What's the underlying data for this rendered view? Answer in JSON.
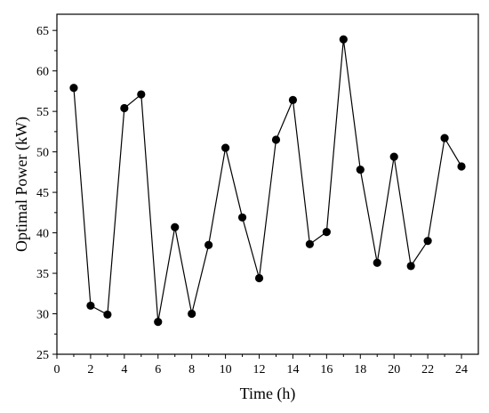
{
  "chart_data": {
    "type": "line",
    "title": "",
    "xlabel": "Time (h)",
    "ylabel": "Optimal Power (kW)",
    "xlim": [
      0,
      25
    ],
    "ylim": [
      25,
      67
    ],
    "xticks": [
      0,
      2,
      4,
      6,
      8,
      10,
      12,
      14,
      16,
      18,
      20,
      22,
      24
    ],
    "yticks": [
      25,
      30,
      35,
      40,
      45,
      50,
      55,
      60,
      65
    ],
    "grid": false,
    "series": [
      {
        "x": [
          1,
          2,
          3,
          4,
          5,
          6,
          7,
          8,
          9,
          10,
          11,
          12,
          13,
          14,
          15,
          16,
          17,
          18,
          19,
          20,
          21,
          22,
          23,
          24
        ],
        "y": [
          57.9,
          31.0,
          29.9,
          55.4,
          57.1,
          29.0,
          40.7,
          30.0,
          38.5,
          50.5,
          41.9,
          34.4,
          51.5,
          56.4,
          38.6,
          40.1,
          63.9,
          47.8,
          36.3,
          49.4,
          35.9,
          39.0,
          51.7,
          48.2
        ],
        "color": "#000000",
        "marker": "circle"
      }
    ]
  }
}
